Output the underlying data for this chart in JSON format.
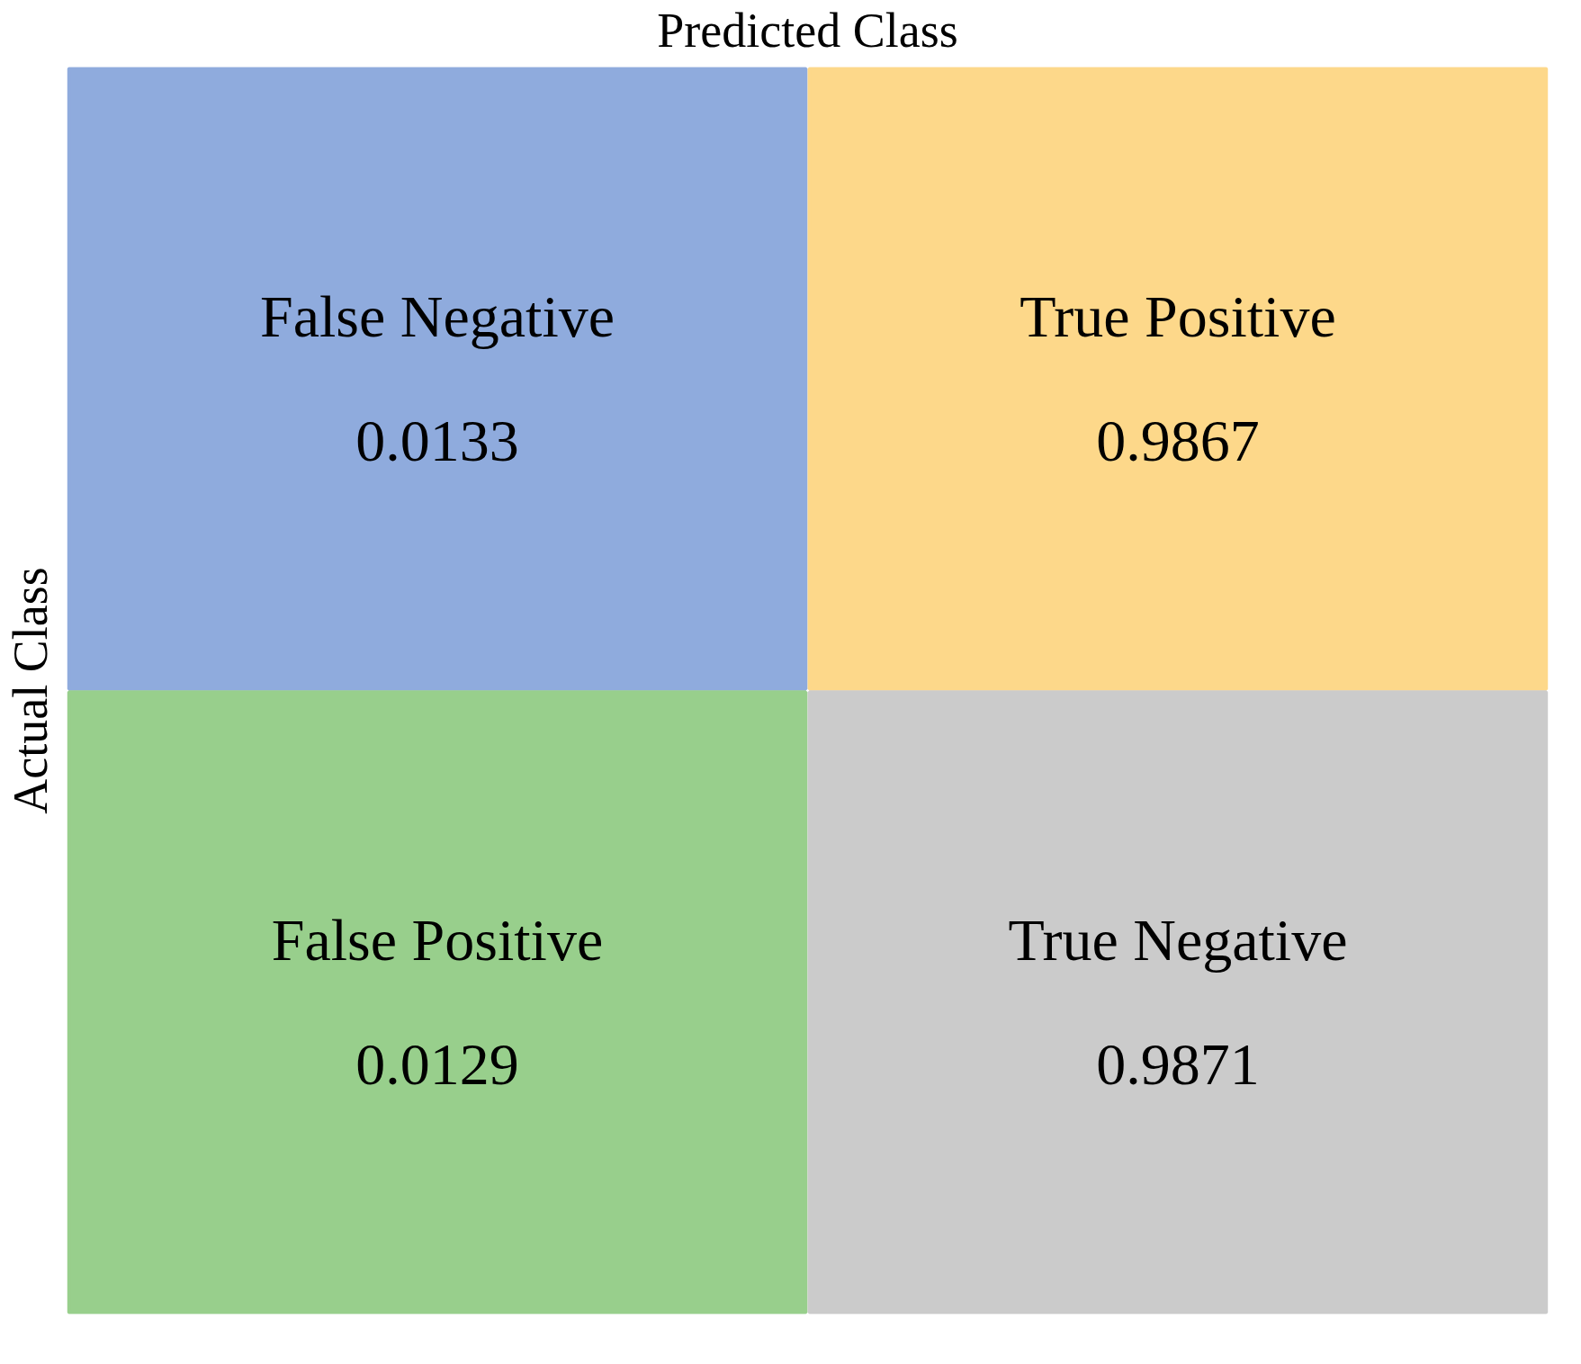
{
  "chart_data": {
    "type": "heatmap",
    "xlabel": "Predicted Class",
    "ylabel": "Actual Class",
    "categories": [
      null,
      null
    ],
    "y_categories": [
      null,
      null
    ],
    "cells": [
      [
        0.0133,
        0.9867
      ],
      [
        0.0129,
        0.9871
      ]
    ],
    "annotations": [
      "False Negative",
      "True Positive",
      "False Positive",
      "True Negative"
    ],
    "colors": [
      [
        "#8fabdd",
        "#fdd88a"
      ],
      [
        "#98cf8c",
        "#cbcbcb"
      ]
    ],
    "data_labels": true,
    "tick_labels": false,
    "grid": false
  }
}
